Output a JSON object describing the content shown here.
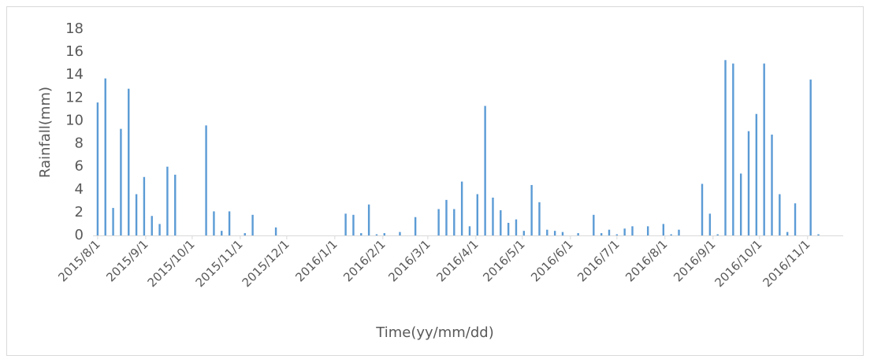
{
  "chart_data": {
    "type": "bar",
    "x_label": "Time(yy/mm/dd)",
    "y_label": "Rainfall(mm)",
    "color": "#5b9bd5",
    "x": [
      "2015/8/1",
      "2015/8/6",
      "2015/8/11",
      "2015/8/16",
      "2015/8/21",
      "2015/8/26",
      "2015/8/31",
      "2015/9/5",
      "2015/9/10",
      "2015/9/15",
      "2015/9/20",
      "2015/10/10",
      "2015/10/15",
      "2015/10/20",
      "2015/10/25",
      "2015/11/4",
      "2015/11/9",
      "2015/11/24",
      "2016/1/8",
      "2016/1/13",
      "2016/1/18",
      "2016/1/23",
      "2016/1/28",
      "2016/2/2",
      "2016/2/12",
      "2016/2/22",
      "2016/3/8",
      "2016/3/13",
      "2016/3/18",
      "2016/3/23",
      "2016/3/28",
      "2016/4/2",
      "2016/4/7",
      "2016/4/12",
      "2016/4/17",
      "2016/4/22",
      "2016/4/27",
      "2016/5/2",
      "2016/5/7",
      "2016/5/12",
      "2016/5/17",
      "2016/5/22",
      "2016/5/27",
      "2016/6/6",
      "2016/6/16",
      "2016/6/21",
      "2016/6/26",
      "2016/7/1",
      "2016/7/6",
      "2016/7/11",
      "2016/7/21",
      "2016/7/31",
      "2016/8/5",
      "2016/8/10",
      "2016/8/25",
      "2016/8/30",
      "2016/9/4",
      "2016/9/9",
      "2016/9/14",
      "2016/9/19",
      "2016/9/24",
      "2016/9/29",
      "2016/10/4",
      "2016/10/9",
      "2016/10/14",
      "2016/10/19",
      "2016/10/24",
      "2016/11/3",
      "2016/11/8"
    ],
    "values": [
      11.6,
      13.7,
      2.4,
      9.3,
      12.8,
      3.6,
      5.1,
      1.7,
      1.0,
      6.0,
      5.3,
      9.6,
      2.1,
      0.4,
      2.1,
      0.2,
      1.8,
      0.7,
      1.9,
      1.8,
      0.2,
      2.7,
      0.1,
      0.2,
      0.3,
      1.6,
      2.3,
      3.1,
      2.3,
      4.7,
      0.8,
      3.6,
      11.3,
      3.3,
      2.2,
      1.1,
      1.4,
      0.4,
      4.4,
      2.9,
      0.5,
      0.4,
      0.3,
      0.2,
      1.8,
      0.2,
      0.5,
      0.1,
      0.6,
      0.8,
      0.8,
      1.0,
      0.1,
      0.5,
      4.5,
      1.9,
      0.1,
      15.3,
      15.0,
      5.4,
      9.1,
      10.6,
      15.0,
      8.8,
      3.6,
      0.3,
      2.8,
      13.6,
      0.1
    ],
    "xlim": [
      "2015/7/29",
      "2016/11/24"
    ],
    "xticks": [
      "2015/8/1",
      "2015/9/1",
      "2015/10/1",
      "2015/11/1",
      "2015/12/1",
      "2016/1/1",
      "2016/2/1",
      "2016/3/1",
      "2016/4/1",
      "2016/5/1",
      "2016/6/1",
      "2016/7/1",
      "2016/8/1",
      "2016/9/1",
      "2016/10/1",
      "2016/11/1"
    ],
    "ylim": [
      0,
      18
    ],
    "yticks": [
      0,
      2,
      4,
      6,
      8,
      10,
      12,
      14,
      16,
      18
    ],
    "grid": false
  }
}
